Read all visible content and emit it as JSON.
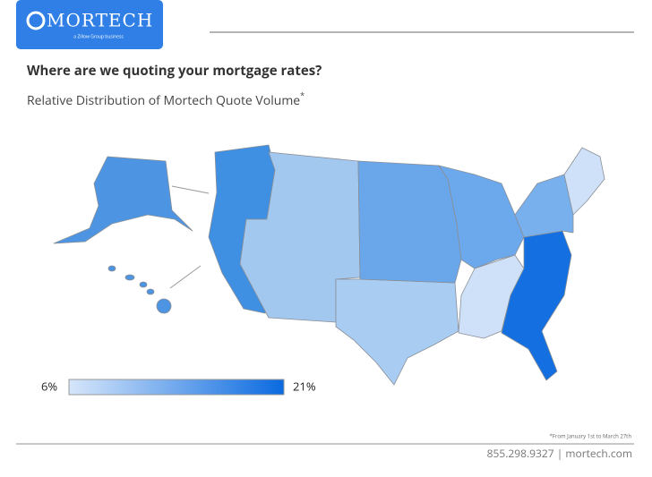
{
  "header": {
    "logo": "MORTECH",
    "tagline": "a Zillow Group business"
  },
  "title": "Where are we quoting your mortgage rates?",
  "subtitle": "Relative Distribution of Mortech Quote Volume",
  "subtitle_mark": "*",
  "legend": {
    "min": {
      "value": 6,
      "label": "6%"
    },
    "max": {
      "value": 21,
      "label": "21%"
    },
    "colors": [
      "#d6e6fa",
      "#0a6ae0"
    ]
  },
  "footnote": "*From January 1st to March 27th",
  "footer": "855.298.9327 | mortech.com"
}
